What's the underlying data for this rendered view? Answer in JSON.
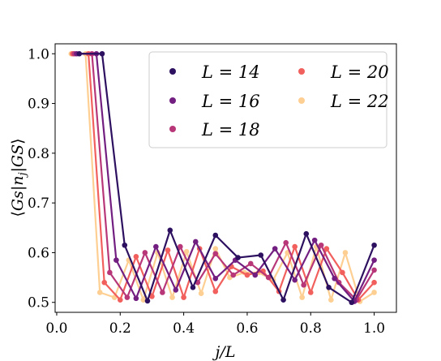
{
  "chart_data": {
    "type": "line",
    "xlabel": "j/L",
    "ylabel": "⟨Gs|n_j|GS⟩",
    "ylabel_parts": {
      "left": "⟨",
      "G": "G",
      "s": "s",
      "bar1": "|",
      "n": "n",
      "sub": "j",
      "bar2": "|",
      "GS": "GS",
      "right": "⟩"
    },
    "xlim": [
      -0.005,
      1.07
    ],
    "ylim": [
      0.48,
      1.02
    ],
    "xticks": [
      0.0,
      0.2,
      0.4,
      0.6,
      0.8,
      1.0
    ],
    "xtick_labels": [
      "0.0",
      "0.2",
      "0.4",
      "0.6",
      "0.8",
      "1.0"
    ],
    "yticks": [
      0.5,
      0.6,
      0.7,
      0.8,
      0.9,
      1.0
    ],
    "ytick_labels": [
      "0.5",
      "0.6",
      "0.7",
      "0.8",
      "0.9",
      "1.0"
    ],
    "grid": false,
    "legend_placement": "top-right",
    "series": [
      {
        "name": "L = 14",
        "color": "#2d1160",
        "x": [
          0.071,
          0.143,
          0.214,
          0.286,
          0.357,
          0.429,
          0.5,
          0.571,
          0.643,
          0.714,
          0.786,
          0.857,
          0.929,
          1.0
        ],
        "values": [
          1.0,
          1.0,
          0.615,
          0.503,
          0.645,
          0.53,
          0.635,
          0.59,
          0.595,
          0.505,
          0.638,
          0.53,
          0.5,
          0.615
        ]
      },
      {
        "name": "L = 16",
        "color": "#721f81",
        "x": [
          0.0625,
          0.125,
          0.1875,
          0.25,
          0.3125,
          0.375,
          0.4375,
          0.5,
          0.5625,
          0.625,
          0.6875,
          0.75,
          0.8125,
          0.875,
          0.9375,
          1.0
        ],
        "values": [
          1.0,
          1.0,
          0.585,
          0.508,
          0.612,
          0.525,
          0.622,
          0.548,
          0.585,
          0.555,
          0.608,
          0.545,
          0.625,
          0.548,
          0.502,
          0.585
        ]
      },
      {
        "name": "L = 18",
        "color": "#b73779",
        "x": [
          0.0556,
          0.111,
          0.167,
          0.222,
          0.278,
          0.333,
          0.389,
          0.444,
          0.5,
          0.556,
          0.611,
          0.667,
          0.722,
          0.778,
          0.833,
          0.889,
          0.944,
          1.0
        ],
        "values": [
          1.0,
          1.0,
          0.56,
          0.51,
          0.6,
          0.52,
          0.612,
          0.54,
          0.598,
          0.555,
          0.578,
          0.55,
          0.62,
          0.535,
          0.615,
          0.54,
          0.505,
          0.565
        ]
      },
      {
        "name": "L = 20",
        "color": "#f1605d",
        "x": [
          0.05,
          0.1,
          0.15,
          0.2,
          0.25,
          0.3,
          0.35,
          0.4,
          0.45,
          0.5,
          0.55,
          0.6,
          0.65,
          0.7,
          0.75,
          0.8,
          0.85,
          0.9,
          0.95,
          1.0
        ],
        "values": [
          1.0,
          1.0,
          0.54,
          0.505,
          0.592,
          0.512,
          0.605,
          0.51,
          0.608,
          0.522,
          0.572,
          0.555,
          0.563,
          0.522,
          0.612,
          0.52,
          0.608,
          0.56,
          0.505,
          0.54
        ]
      },
      {
        "name": "L = 22",
        "color": "#fecf92",
        "x": [
          0.0455,
          0.0909,
          0.136,
          0.182,
          0.227,
          0.273,
          0.318,
          0.364,
          0.409,
          0.455,
          0.5,
          0.545,
          0.591,
          0.636,
          0.682,
          0.727,
          0.773,
          0.818,
          0.864,
          0.909,
          0.955,
          1.0
        ],
        "values": [
          1.0,
          1.0,
          0.52,
          0.51,
          0.585,
          0.505,
          0.6,
          0.51,
          0.602,
          0.518,
          0.608,
          0.55,
          0.56,
          0.56,
          0.545,
          0.6,
          0.51,
          0.612,
          0.505,
          0.6,
          0.502,
          0.52
        ]
      }
    ]
  }
}
